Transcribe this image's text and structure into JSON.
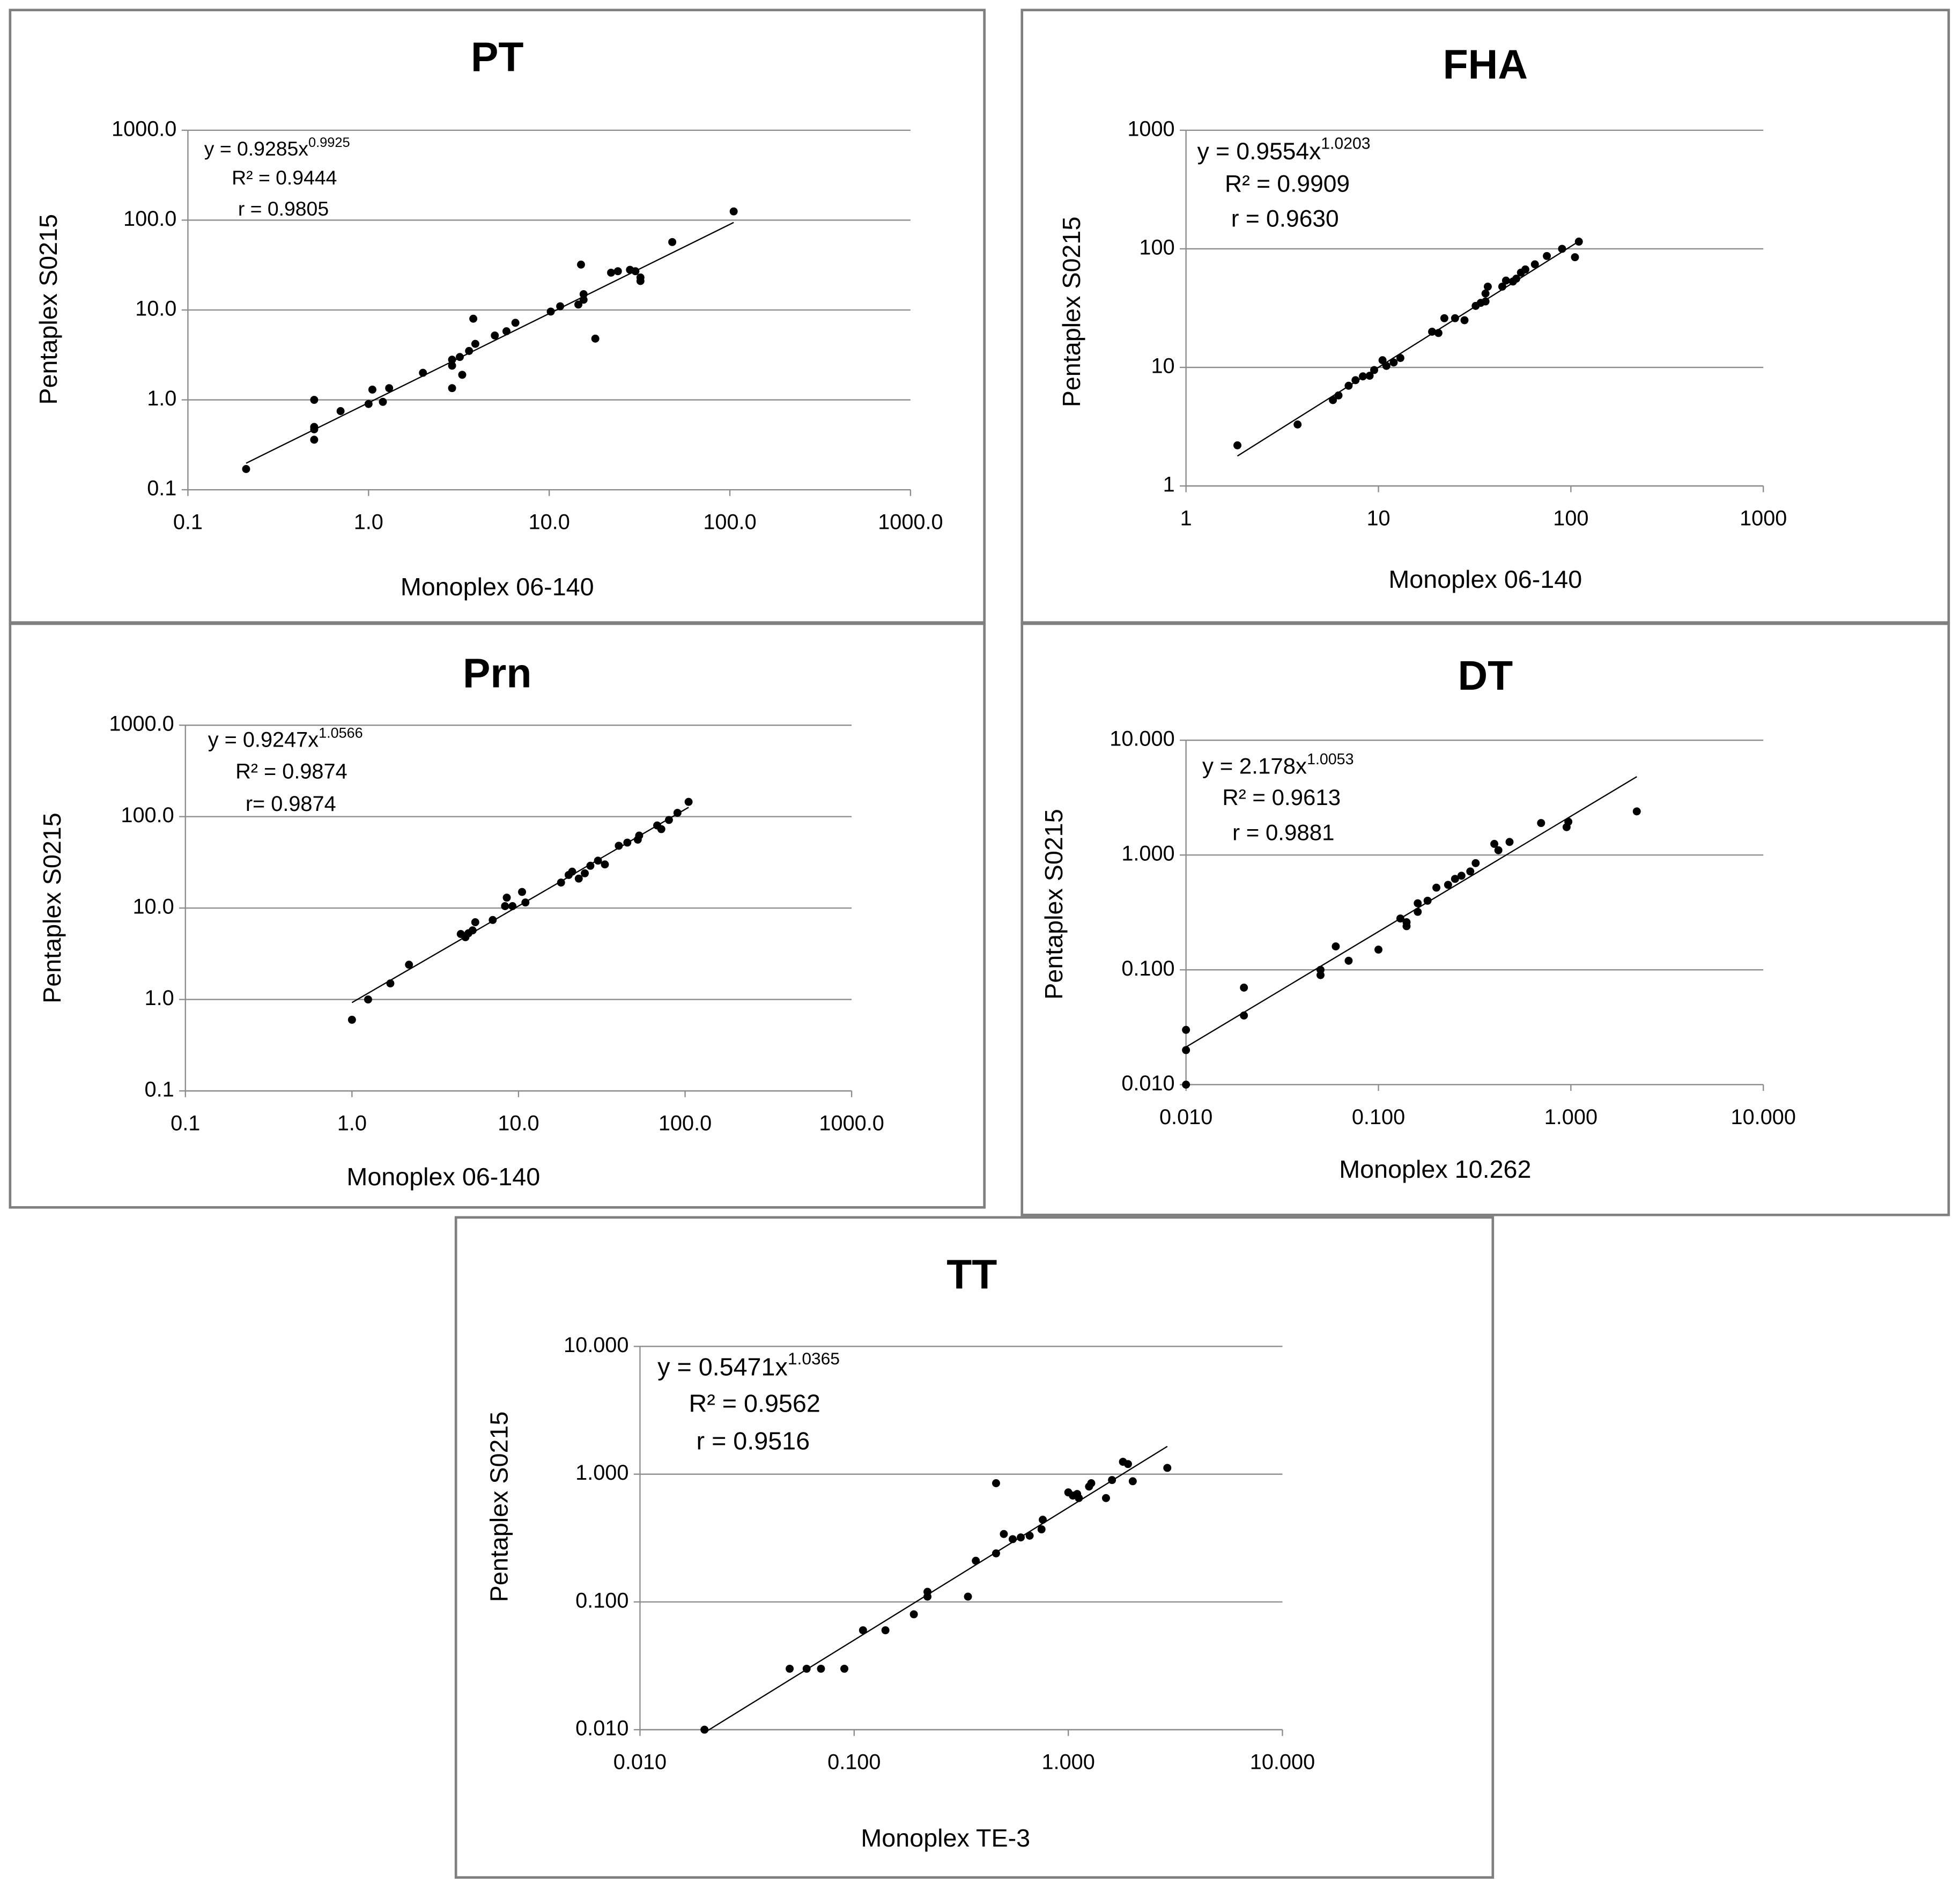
{
  "chart_data": [
    {
      "type": "scatter",
      "title": "PT",
      "xlabel": "Monoplex 06-140",
      "ylabel": "Pentaplex S0215",
      "xscale": "log",
      "yscale": "log",
      "grid": "y",
      "color": "#000000",
      "x": [
        0.21,
        0.5,
        0.5,
        0.5,
        0.5,
        0.7,
        1.0,
        1.05,
        1.2,
        1.3,
        2.0,
        2.9,
        2.9,
        2.9,
        3.2,
        3.3,
        3.6,
        3.8,
        3.9,
        5.0,
        5.8,
        6.5,
        10.2,
        11.5,
        14.5,
        15,
        15.5,
        15.5,
        18,
        22,
        24,
        28,
        30,
        32,
        32,
        48,
        105
      ],
      "values": [
        0.17,
        1.0,
        0.5,
        0.47,
        0.36,
        0.75,
        0.9,
        1.3,
        0.95,
        1.35,
        2.0,
        2.4,
        1.35,
        2.8,
        3.0,
        1.9,
        3.5,
        8.0,
        4.2,
        5.2,
        5.8,
        7.2,
        9.6,
        11,
        11.5,
        32,
        13,
        15,
        4.8,
        26,
        27,
        28,
        27,
        23,
        21,
        57,
        125
      ],
      "xlim": [
        0.1,
        1000
      ],
      "ylim": [
        0.1,
        1000
      ],
      "xticks": [
        {
          "value": 0.1,
          "label": "0.1"
        },
        {
          "value": 1,
          "label": "1.0"
        },
        {
          "value": 10,
          "label": "10.0"
        },
        {
          "value": 100,
          "label": "100.0"
        },
        {
          "value": 1000,
          "label": "1000.0"
        }
      ],
      "yticks": [
        {
          "value": 0.1,
          "label": "0.1"
        },
        {
          "value": 1,
          "label": "1.0"
        },
        {
          "value": 10,
          "label": "10.0"
        },
        {
          "value": 100,
          "label": "100.0"
        },
        {
          "value": 1000,
          "label": "1000.0"
        }
      ],
      "fit": {
        "equation": "y = 0.9285x",
        "coefficient": 0.9285,
        "exponent": 0.9925
      },
      "annotations": [
        "R² = 0.9444",
        "r = 0.9805"
      ]
    },
    {
      "type": "scatter",
      "title": "FHA",
      "xlabel": "Monoplex 06-140",
      "ylabel": "Pentaplex S0215",
      "xscale": "log",
      "yscale": "log",
      "grid": "y",
      "color": "#000000",
      "x": [
        1.85,
        3.8,
        5.8,
        6.2,
        7,
        7.6,
        8.3,
        9,
        9.5,
        10.5,
        11,
        12,
        13,
        19,
        20.5,
        22,
        25,
        28,
        32,
        34,
        36,
        36,
        37,
        44,
        46,
        50,
        52,
        55,
        58,
        65,
        75,
        90,
        105,
        110
      ],
      "values": [
        2.2,
        3.3,
        5.3,
        5.8,
        7,
        7.8,
        8.4,
        8.5,
        9.5,
        11.5,
        10.3,
        11,
        12,
        20,
        19.5,
        26,
        26,
        25,
        33,
        35,
        36,
        42,
        48,
        48,
        54,
        53,
        56,
        63,
        67,
        74,
        87,
        100,
        85,
        115
      ],
      "xlim": [
        1,
        1000
      ],
      "ylim": [
        1,
        1000
      ],
      "xticks": [
        1,
        10,
        100,
        1000
      ],
      "yticks": [
        1,
        10,
        100,
        1000
      ],
      "fit": {
        "equation": "y = 0.9554x",
        "coefficient": 0.9554,
        "exponent": 1.0203
      },
      "annotations": [
        "R² = 0.9909",
        "r = 0.9630"
      ]
    },
    {
      "type": "scatter",
      "title": "Prn",
      "xlabel": "Monoplex 06-140",
      "ylabel": "Pentaplex S0215",
      "xscale": "log",
      "yscale": "log",
      "grid": "y",
      "color": "#000000",
      "x": [
        1.0,
        1.25,
        1.7,
        2.2,
        4.5,
        4.8,
        5,
        5.3,
        5.5,
        7,
        8.3,
        8.5,
        9.2,
        10.5,
        11,
        18,
        20,
        21,
        23,
        25,
        27,
        30,
        33,
        40,
        45,
        52,
        53,
        68,
        72,
        80,
        90,
        105
      ],
      "values": [
        0.6,
        1.0,
        1.5,
        2.4,
        5.2,
        4.8,
        5.3,
        5.7,
        7,
        7.4,
        10.5,
        13,
        10.5,
        15,
        11.5,
        19,
        23,
        25,
        21,
        24,
        29,
        33,
        30,
        48,
        52,
        56,
        62,
        80,
        73,
        92,
        110,
        145
      ],
      "xlim": [
        0.1,
        1000
      ],
      "ylim": [
        0.1,
        1000
      ],
      "xticks": [
        {
          "value": 0.1,
          "label": "0.1"
        },
        {
          "value": 1,
          "label": "1.0"
        },
        {
          "value": 10,
          "label": "10.0"
        },
        {
          "value": 100,
          "label": "100.0"
        },
        {
          "value": 1000,
          "label": "1000.0"
        }
      ],
      "yticks": [
        {
          "value": 0.1,
          "label": "0.1"
        },
        {
          "value": 1,
          "label": "1.0"
        },
        {
          "value": 10,
          "label": "10.0"
        },
        {
          "value": 100,
          "label": "100.0"
        },
        {
          "value": 1000,
          "label": "1000.0"
        }
      ],
      "fit": {
        "equation": "y = 0.9247x",
        "coefficient": 0.9247,
        "exponent": 1.0566
      },
      "annotations": [
        "R² = 0.9874",
        "r= 0.9874"
      ]
    },
    {
      "type": "scatter",
      "title": "DT",
      "xlabel": "Monoplex 10.262",
      "ylabel": "Pentaplex S0215",
      "xscale": "log",
      "yscale": "log",
      "grid": "y",
      "color": "#000000",
      "x": [
        0.01,
        0.01,
        0.01,
        0.02,
        0.02,
        0.05,
        0.05,
        0.06,
        0.07,
        0.1,
        0.13,
        0.14,
        0.14,
        0.16,
        0.16,
        0.18,
        0.2,
        0.23,
        0.25,
        0.27,
        0.3,
        0.32,
        0.4,
        0.42,
        0.48,
        0.7,
        0.95,
        0.97,
        2.2
      ],
      "values": [
        0.03,
        0.02,
        0.01,
        0.07,
        0.04,
        0.1,
        0.09,
        0.16,
        0.12,
        0.15,
        0.28,
        0.26,
        0.24,
        0.32,
        0.38,
        0.4,
        0.52,
        0.55,
        0.62,
        0.66,
        0.72,
        0.85,
        1.25,
        1.1,
        1.3,
        1.9,
        1.75,
        1.95,
        2.4
      ],
      "xlim": [
        0.01,
        10
      ],
      "ylim": [
        0.01,
        10
      ],
      "xticks": [
        {
          "value": 0.01,
          "label": "0.010"
        },
        {
          "value": 0.1,
          "label": "0.100"
        },
        {
          "value": 1,
          "label": "1.000"
        },
        {
          "value": 10,
          "label": "10.000"
        }
      ],
      "yticks": [
        {
          "value": 0.01,
          "label": "0.010"
        },
        {
          "value": 0.1,
          "label": "0.100"
        },
        {
          "value": 1,
          "label": "1.000"
        },
        {
          "value": 10,
          "label": "10.000"
        }
      ],
      "fit": {
        "equation": "y = 2.178x",
        "coefficient": 2.178,
        "exponent": 1.0053
      },
      "annotations": [
        "R² = 0.9613",
        "r = 0.9881"
      ]
    },
    {
      "type": "scatter",
      "title": "TT",
      "xlabel": "Monoplex TE-3",
      "ylabel": "Pentaplex S0215",
      "xscale": "log",
      "yscale": "log",
      "grid": "y",
      "color": "#000000",
      "x": [
        0.02,
        0.05,
        0.06,
        0.07,
        0.09,
        0.11,
        0.14,
        0.19,
        0.22,
        0.22,
        0.34,
        0.37,
        0.46,
        0.46,
        0.5,
        0.55,
        0.6,
        0.66,
        0.75,
        0.76,
        1.0,
        1.05,
        1.1,
        1.12,
        1.25,
        1.28,
        1.5,
        1.6,
        1.8,
        1.9,
        2.0,
        2.9
      ],
      "values": [
        0.01,
        0.03,
        0.03,
        0.03,
        0.03,
        0.06,
        0.06,
        0.08,
        0.11,
        0.12,
        0.11,
        0.21,
        0.24,
        0.85,
        0.34,
        0.31,
        0.32,
        0.33,
        0.37,
        0.44,
        0.72,
        0.68,
        0.7,
        0.65,
        0.8,
        0.85,
        0.65,
        0.9,
        1.25,
        1.2,
        0.88,
        1.12
      ],
      "xlim": [
        0.01,
        10
      ],
      "ylim": [
        0.01,
        10
      ],
      "xticks": [
        {
          "value": 0.01,
          "label": "0.010"
        },
        {
          "value": 0.1,
          "label": "0.100"
        },
        {
          "value": 1,
          "label": "1.000"
        },
        {
          "value": 10,
          "label": "10.000"
        }
      ],
      "yticks": [
        {
          "value": 0.01,
          "label": "0.010"
        },
        {
          "value": 0.1,
          "label": "0.100"
        },
        {
          "value": 1,
          "label": "1.000"
        },
        {
          "value": 10,
          "label": "10.000"
        }
      ],
      "fit": {
        "equation": "y = 0.5471x",
        "coefficient": 0.5471,
        "exponent": 1.0365
      },
      "annotations": [
        "R² = 0.9562",
        "r = 0.9516"
      ]
    }
  ]
}
